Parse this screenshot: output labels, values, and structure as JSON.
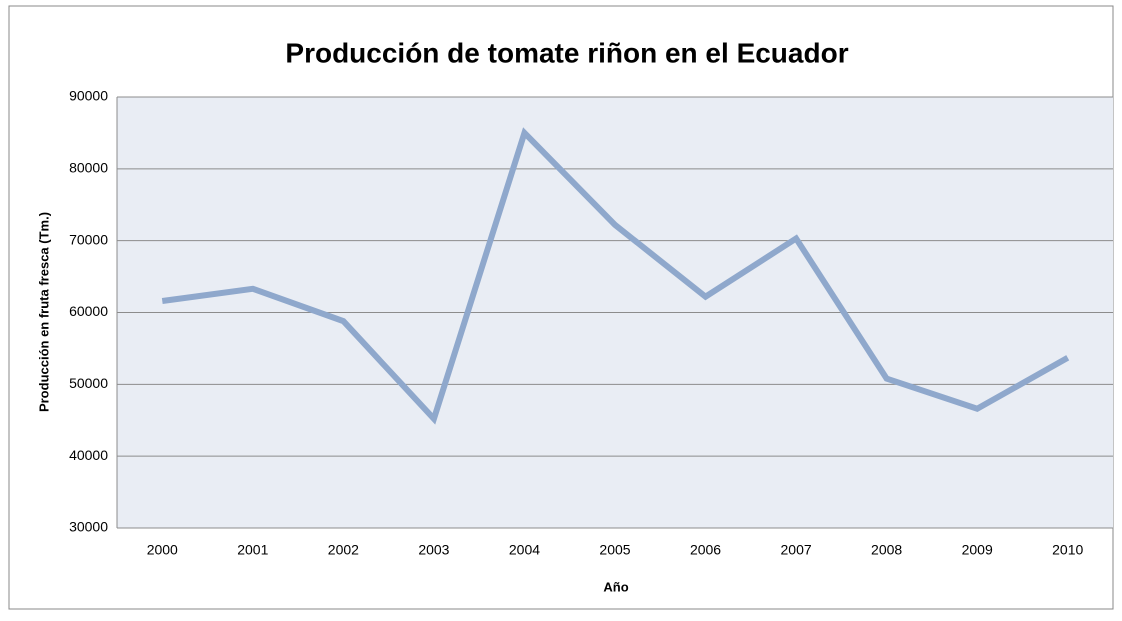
{
  "chart_data": {
    "type": "line",
    "title": "Producción de tomate riñon en el Ecuador",
    "x_label": "Año",
    "y_label": "Producción  en fruta fresca (Tm.)",
    "categories": [
      "2000",
      "2001",
      "2002",
      "2003",
      "2004",
      "2005",
      "2006",
      "2007",
      "2008",
      "2009",
      "2010"
    ],
    "series": [
      {
        "name": "Producción",
        "color": "#8fa8cc",
        "values": [
          61600,
          63300,
          58800,
          45200,
          85000,
          72200,
          62200,
          70300,
          50800,
          46600,
          53700
        ]
      }
    ],
    "ylim": [
      30000,
      90000
    ],
    "yticks": [
      30000,
      40000,
      50000,
      60000,
      70000,
      80000,
      90000
    ],
    "grid": true
  }
}
